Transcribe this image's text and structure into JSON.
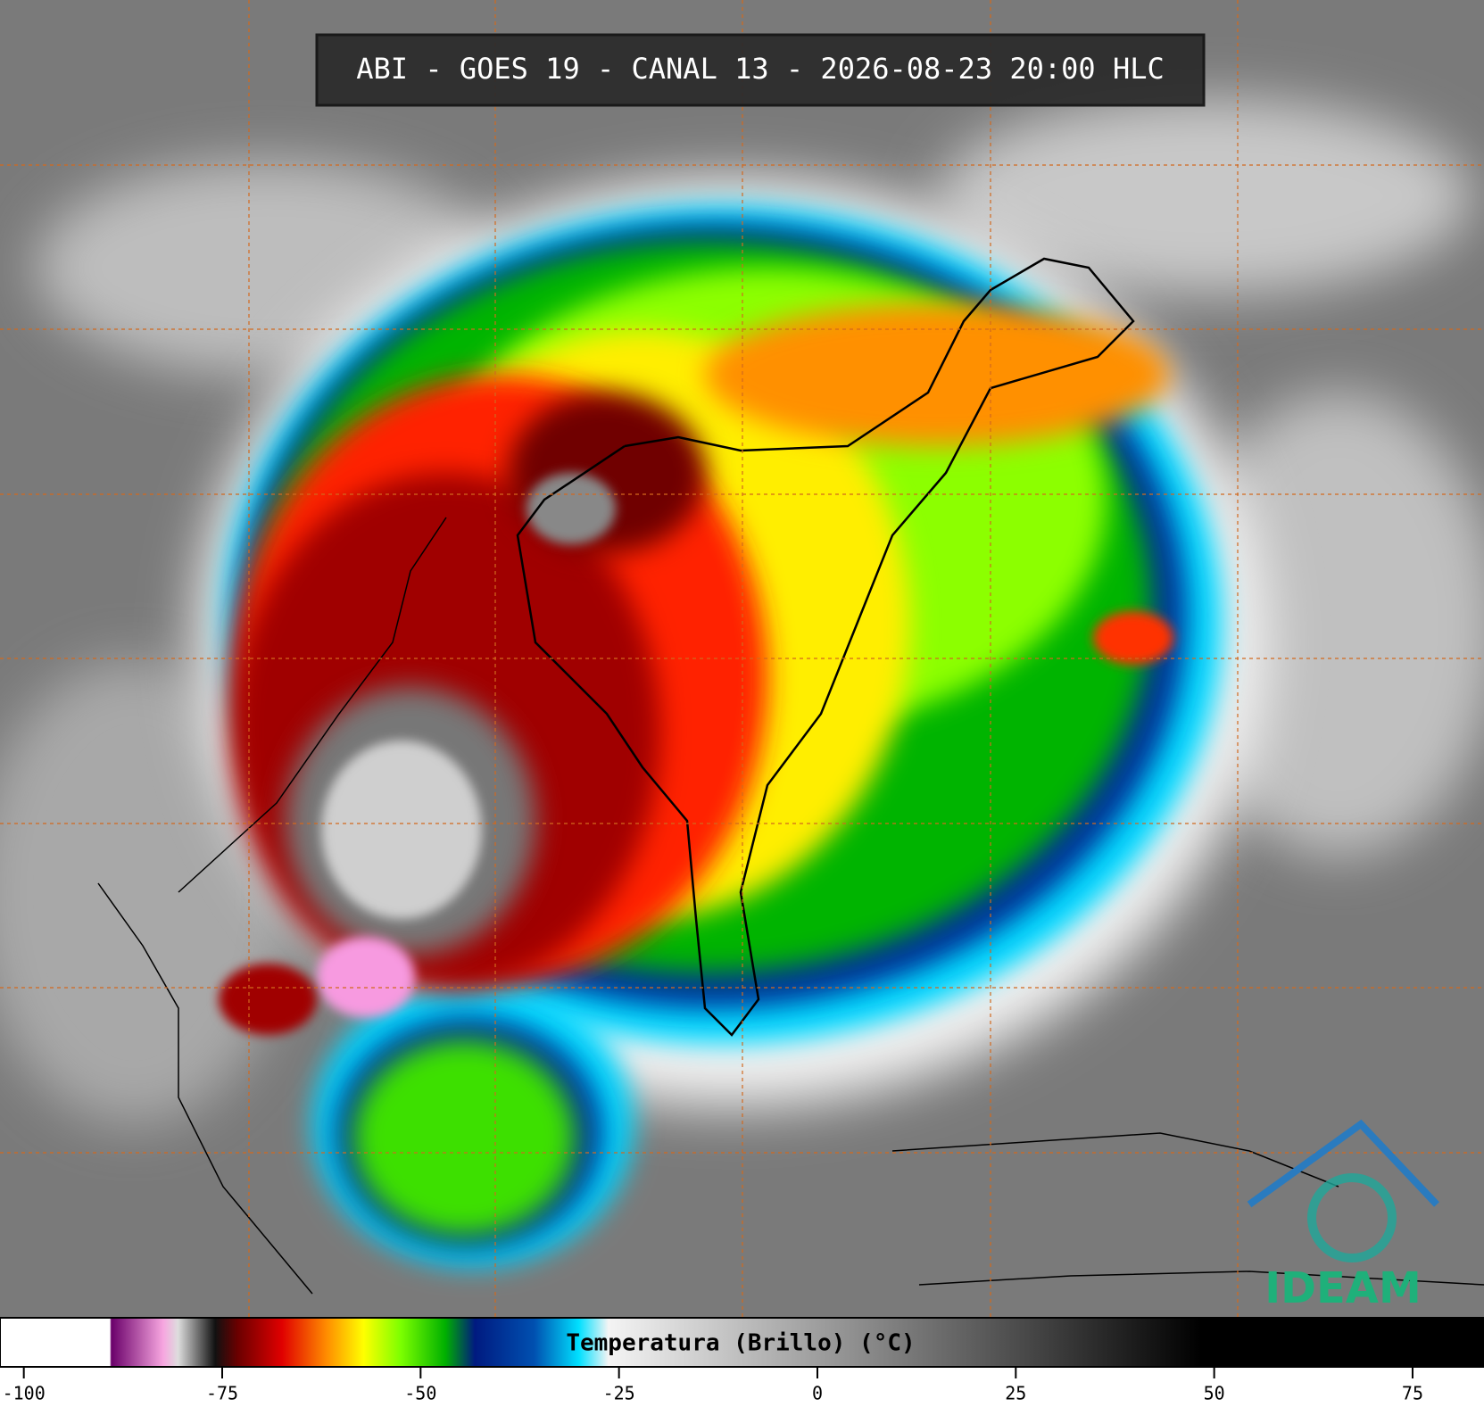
{
  "header": {
    "title": "ABI - GOES 19 - CANAL 13 - 2026-08-23 20:00 HLC"
  },
  "colorbar": {
    "label": "Temperatura (Brillo) (°C)",
    "range": [
      -103,
      84
    ],
    "ticks": [
      -100,
      -75,
      -50,
      -25,
      0,
      25,
      50,
      75
    ]
  },
  "logo": {
    "text": "IDEAM"
  }
}
